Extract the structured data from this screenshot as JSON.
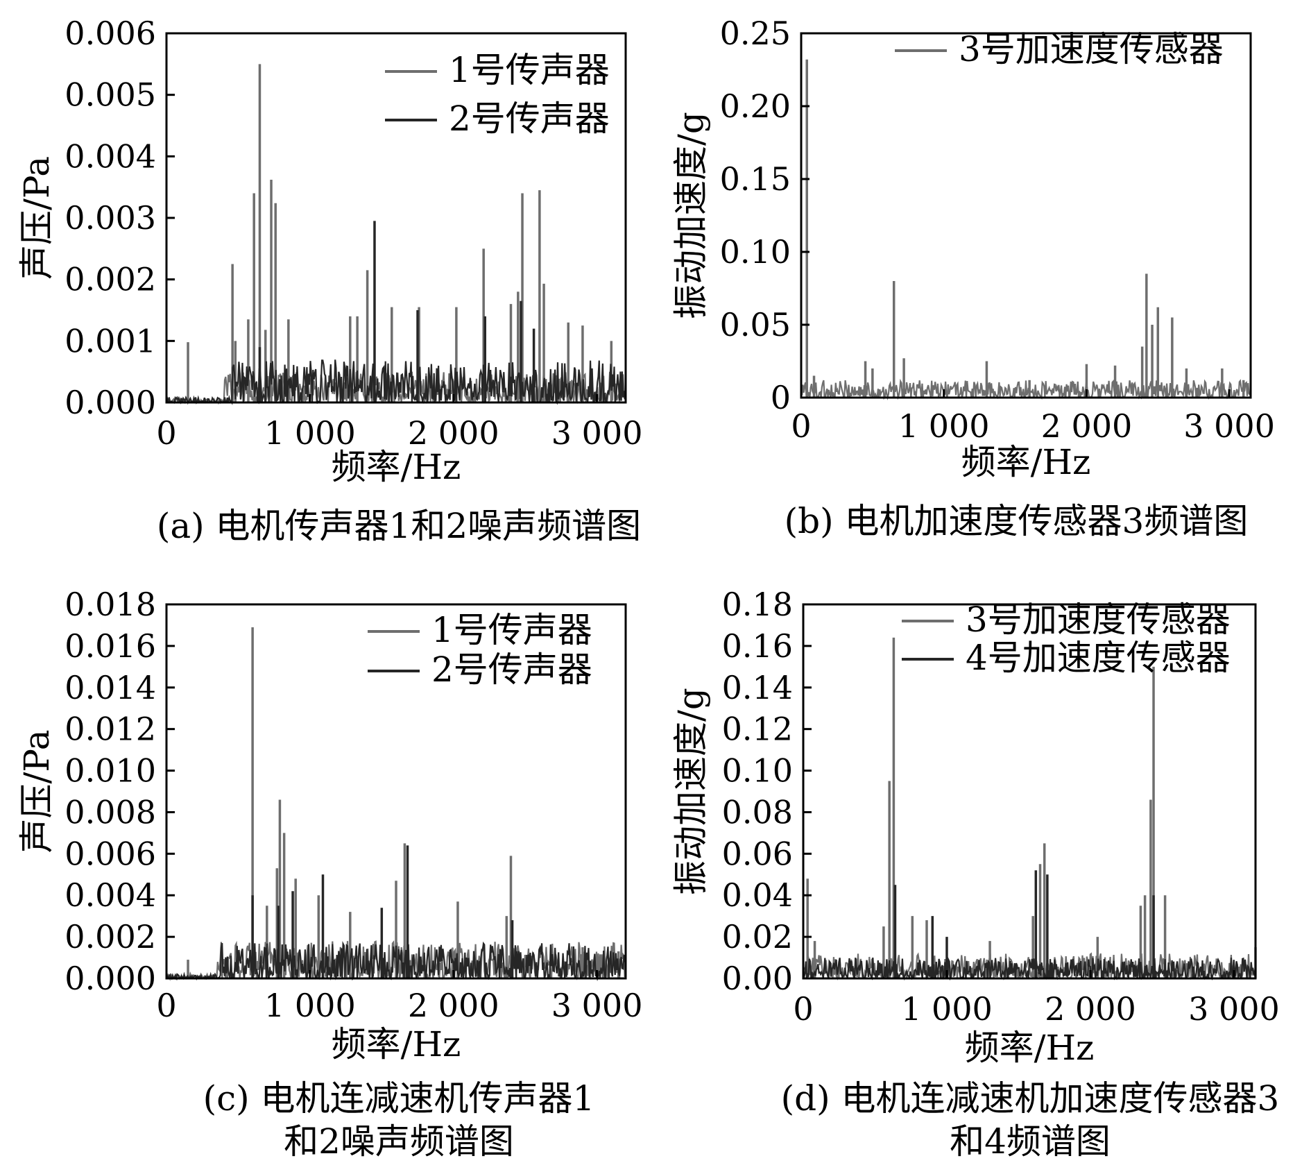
{
  "colors": {
    "series_gray": "#6e6e6e",
    "series_dark": "#262626",
    "axis": "#000000"
  },
  "chart_data": [
    {
      "type": "line",
      "caption": "(a) 电机传声器1和2噪声频谱图",
      "xlabel": "频率/Hz",
      "ylabel": "声压/Pa",
      "xlim": [
        0,
        3200
      ],
      "ylim": [
        0,
        0.006
      ],
      "xticks": [
        0,
        1000,
        2000,
        3000
      ],
      "xtick_labels": [
        "0",
        "1 000",
        "2 000",
        "3 000"
      ],
      "yticks": [
        0,
        0.001,
        0.002,
        0.003,
        0.004,
        0.005,
        0.006
      ],
      "ytick_labels": [
        "0.000",
        "0.001",
        "0.002",
        "0.003",
        "0.004",
        "0.005",
        "0.006"
      ],
      "legend_position": "top-right",
      "series": [
        {
          "name": "1号传声器",
          "color": "#6e6e6e",
          "peaks": [
            [
              150,
              0.00098
            ],
            [
              460,
              0.00225
            ],
            [
              480,
              0.001
            ],
            [
              570,
              0.00135
            ],
            [
              610,
              0.0034
            ],
            [
              650,
              0.0055
            ],
            [
              690,
              0.00118
            ],
            [
              730,
              0.00362
            ],
            [
              760,
              0.00324
            ],
            [
              850,
              0.00135
            ],
            [
              1280,
              0.0014
            ],
            [
              1330,
              0.0014
            ],
            [
              1400,
              0.00215
            ],
            [
              1570,
              0.00155
            ],
            [
              1760,
              0.00155
            ],
            [
              2020,
              0.00155
            ],
            [
              2210,
              0.0025
            ],
            [
              2400,
              0.0016
            ],
            [
              2450,
              0.0018
            ],
            [
              2480,
              0.0034
            ],
            [
              2600,
              0.00345
            ],
            [
              2630,
              0.00193
            ],
            [
              2800,
              0.0013
            ],
            [
              2900,
              0.00125
            ],
            [
              3100,
              0.001
            ]
          ],
          "noise_level": 0.0005,
          "noise_start": 400
        },
        {
          "name": "2号传声器",
          "color": "#262626",
          "peaks": [
            [
              650,
              0.0009
            ],
            [
              1450,
              0.00295
            ],
            [
              1750,
              0.0015
            ],
            [
              2220,
              0.0014
            ],
            [
              2470,
              0.00165
            ],
            [
              2560,
              0.0012
            ]
          ],
          "noise_level": 0.0007,
          "noise_start": 450
        }
      ]
    },
    {
      "type": "line",
      "caption": "(b) 电机加速度传感器3频谱图",
      "xlabel": "频率/Hz",
      "ylabel": "振动加速度/g",
      "xlim": [
        0,
        3150
      ],
      "ylim": [
        0,
        0.25
      ],
      "xticks": [
        0,
        1000,
        2000,
        3000
      ],
      "xtick_labels": [
        "0",
        "1 000",
        "2 000",
        "3 000"
      ],
      "yticks": [
        0,
        0.05,
        0.1,
        0.15,
        0.2,
        0.25
      ],
      "ytick_labels": [
        "0",
        "0.05",
        "0.10",
        "0.15",
        "0.20",
        "0.25"
      ],
      "legend_position": "top-right",
      "series": [
        {
          "name": "3号加速度传感器",
          "color": "#6e6e6e",
          "peaks": [
            [
              40,
              0.232
            ],
            [
              90,
              0.015
            ],
            [
              450,
              0.025
            ],
            [
              500,
              0.02
            ],
            [
              650,
              0.08
            ],
            [
              720,
              0.027
            ],
            [
              1300,
              0.025
            ],
            [
              1600,
              0.012
            ],
            [
              2000,
              0.023
            ],
            [
              2200,
              0.022
            ],
            [
              2390,
              0.035
            ],
            [
              2420,
              0.085
            ],
            [
              2460,
              0.05
            ],
            [
              2500,
              0.062
            ],
            [
              2600,
              0.055
            ],
            [
              2700,
              0.02
            ],
            [
              2950,
              0.02
            ],
            [
              3100,
              0.012
            ]
          ],
          "noise_level": 0.012,
          "noise_start": 0
        }
      ]
    },
    {
      "type": "line",
      "caption": "(c) 电机连减速机传声器1\n和2噪声频谱图",
      "xlabel": "频率/Hz",
      "ylabel": "声压/Pa",
      "xlim": [
        0,
        3200
      ],
      "ylim": [
        0,
        0.018
      ],
      "xticks": [
        0,
        1000,
        2000,
        3000
      ],
      "xtick_labels": [
        "0",
        "1 000",
        "2 000",
        "3 000"
      ],
      "yticks": [
        0,
        0.002,
        0.004,
        0.006,
        0.008,
        0.01,
        0.012,
        0.014,
        0.016,
        0.018
      ],
      "ytick_labels": [
        "0.000",
        "0.002",
        "0.004",
        "0.006",
        "0.008",
        "0.010",
        "0.012",
        "0.014",
        "0.016",
        "0.018"
      ],
      "legend_position": "top-right",
      "series": [
        {
          "name": "1号传声器",
          "color": "#6e6e6e",
          "peaks": [
            [
              150,
              0.0009
            ],
            [
              600,
              0.0169
            ],
            [
              700,
              0.0035
            ],
            [
              770,
              0.0053
            ],
            [
              790,
              0.0086
            ],
            [
              820,
              0.007
            ],
            [
              900,
              0.0048
            ],
            [
              1060,
              0.004
            ],
            [
              1280,
              0.0032
            ],
            [
              1600,
              0.0047
            ],
            [
              1660,
              0.0065
            ],
            [
              2030,
              0.0037
            ],
            [
              2370,
              0.003
            ],
            [
              2400,
              0.0059
            ],
            [
              2900,
              0.0015
            ],
            [
              3150,
              0.0013
            ]
          ],
          "noise_level": 0.0018,
          "noise_start": 350
        },
        {
          "name": "2号传声器",
          "color": "#262626",
          "peaks": [
            [
              600,
              0.004
            ],
            [
              780,
              0.0035
            ],
            [
              880,
              0.0042
            ],
            [
              1090,
              0.005
            ],
            [
              1500,
              0.0034
            ],
            [
              1680,
              0.0064
            ],
            [
              2410,
              0.0028
            ]
          ],
          "noise_level": 0.0017,
          "noise_start": 380
        }
      ]
    },
    {
      "type": "line",
      "caption": "(d) 电机连减速机加速度传感器3\n和4频谱图",
      "xlabel": "频率/Hz",
      "ylabel": "振动加速度/g",
      "xlim": [
        0,
        3150
      ],
      "ylim": [
        0,
        0.18
      ],
      "xticks": [
        0,
        1000,
        2000,
        3000
      ],
      "xtick_labels": [
        "0",
        "1 000",
        "2 000",
        "3 000"
      ],
      "yticks": [
        0,
        0.02,
        0.04,
        0.06,
        0.08,
        0.1,
        0.12,
        0.14,
        0.16,
        0.18
      ],
      "ytick_labels": [
        "0.00",
        "0.02",
        "0.04",
        "0.06",
        "0.08",
        "0.10",
        "0.12",
        "0.14",
        "0.16",
        "0.18"
      ],
      "legend_position": "top-right",
      "series": [
        {
          "name": "3号加速度传感器",
          "color": "#6e6e6e",
          "peaks": [
            [
              30,
              0.048
            ],
            [
              80,
              0.018
            ],
            [
              560,
              0.025
            ],
            [
              600,
              0.095
            ],
            [
              630,
              0.164
            ],
            [
              760,
              0.03
            ],
            [
              860,
              0.028
            ],
            [
              1300,
              0.018
            ],
            [
              1600,
              0.03
            ],
            [
              1650,
              0.055
            ],
            [
              1680,
              0.065
            ],
            [
              2050,
              0.02
            ],
            [
              2350,
              0.035
            ],
            [
              2380,
              0.04
            ],
            [
              2420,
              0.086
            ],
            [
              2440,
              0.15
            ],
            [
              2520,
              0.04
            ],
            [
              3150,
              0.015
            ]
          ],
          "noise_level": 0.012,
          "noise_start": 0
        },
        {
          "name": "4号加速度传感器",
          "color": "#262626",
          "peaks": [
            [
              640,
              0.045
            ],
            [
              900,
              0.03
            ],
            [
              1000,
              0.02
            ],
            [
              1620,
              0.052
            ],
            [
              1700,
              0.05
            ],
            [
              2440,
              0.04
            ]
          ],
          "noise_level": 0.01,
          "noise_start": 0
        }
      ]
    }
  ]
}
